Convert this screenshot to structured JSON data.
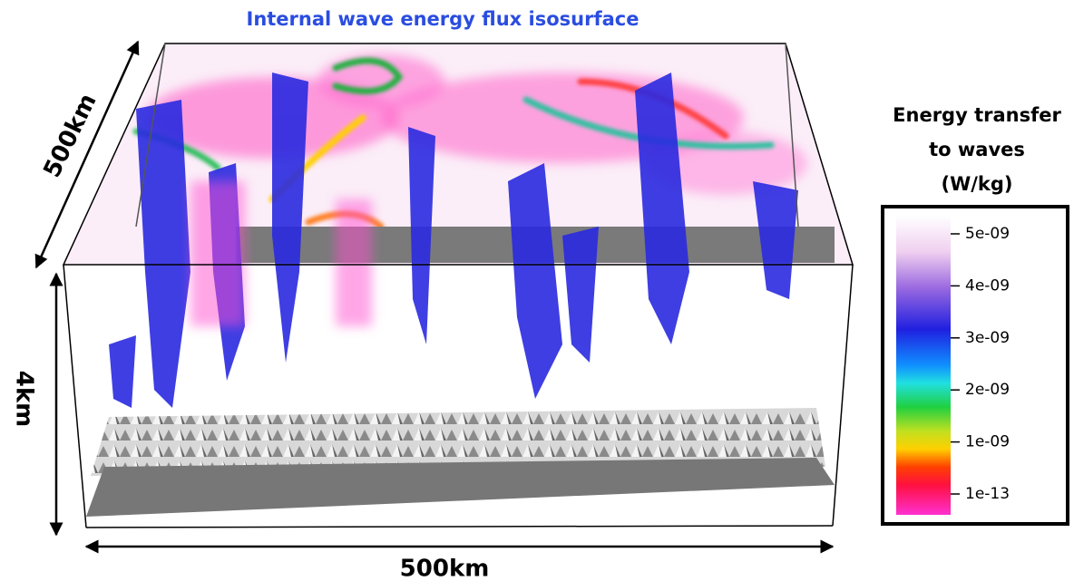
{
  "figure": {
    "title": "Internal wave energy flux isosurface",
    "axes": {
      "depth_label": "500km",
      "height_label": "4km",
      "width_label": "500km"
    },
    "colorbar": {
      "title_lines": [
        "Energy transfer",
        "to waves",
        "(W/kg)"
      ],
      "ticks": [
        "5e-09",
        "4e-09",
        "3e-09",
        "2e-09",
        "1e-09",
        "1e-13"
      ]
    }
  }
}
